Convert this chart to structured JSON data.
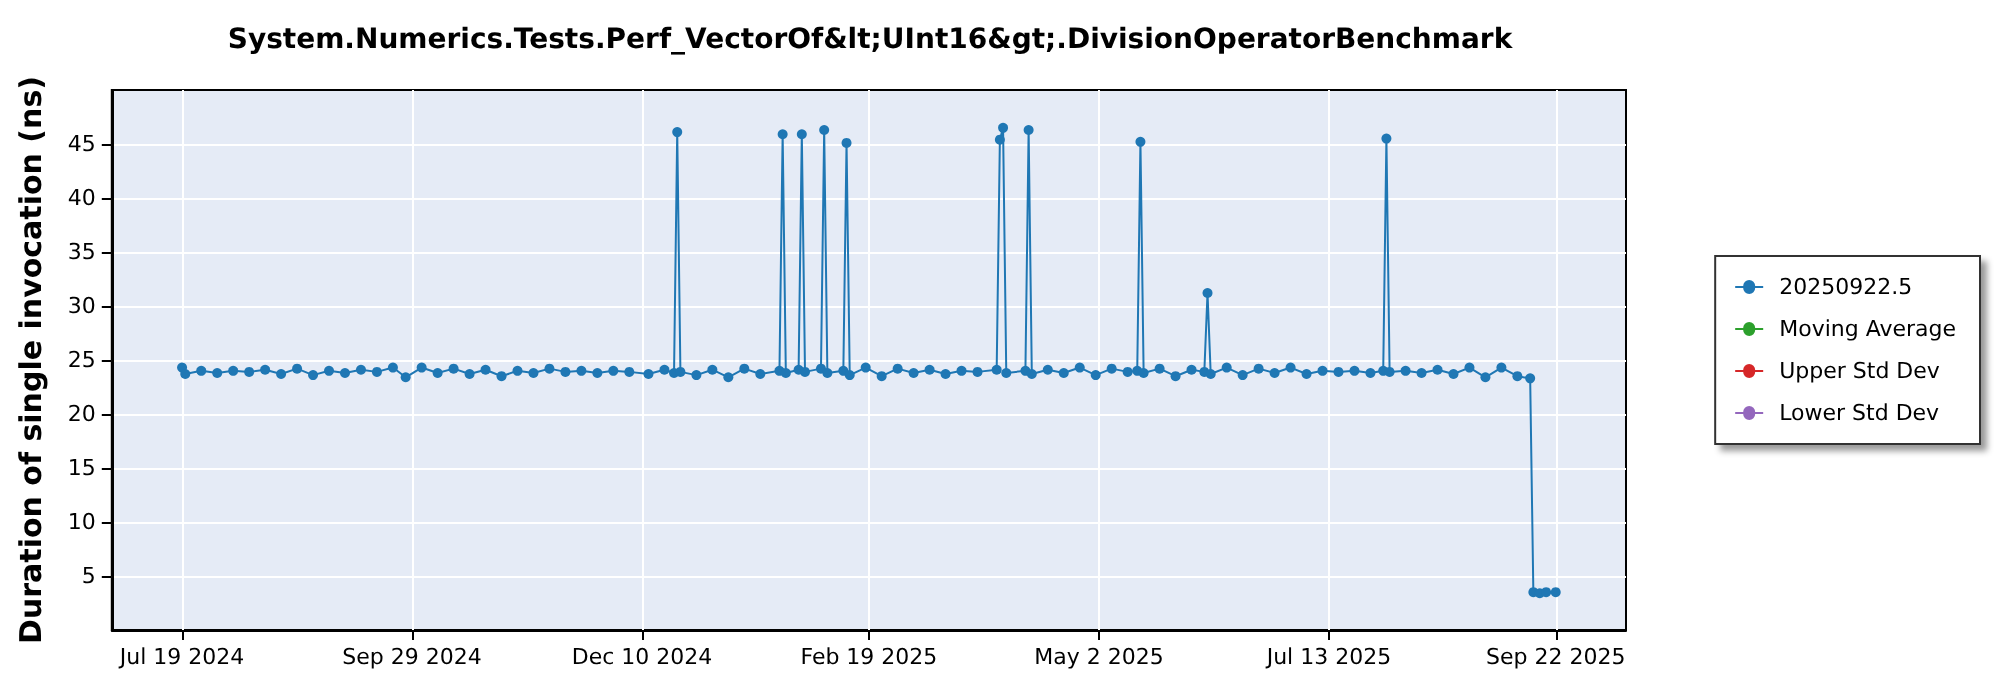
{
  "chart_data": {
    "type": "line",
    "title": "System.Numerics.Tests.Perf_VectorOf&lt;UInt16&gt;.DivisionOperatorBenchmark",
    "ylabel": "Duration of single invocation (ns)",
    "series": [
      {
        "name": "20250922.5",
        "color": "#1f77b4",
        "x": [
          "2024-07-19",
          "2024-07-20",
          "2024-07-25",
          "2024-07-30",
          "2024-08-04",
          "2024-08-09",
          "2024-08-14",
          "2024-08-19",
          "2024-08-24",
          "2024-08-29",
          "2024-09-03",
          "2024-09-08",
          "2024-09-13",
          "2024-09-18",
          "2024-09-23",
          "2024-09-27",
          "2024-10-02",
          "2024-10-07",
          "2024-10-12",
          "2024-10-17",
          "2024-10-22",
          "2024-10-27",
          "2024-11-01",
          "2024-11-06",
          "2024-11-11",
          "2024-11-16",
          "2024-11-21",
          "2024-11-26",
          "2024-12-01",
          "2024-12-06",
          "2024-12-12",
          "2024-12-17",
          "2024-12-20",
          "2024-12-21",
          "2024-12-22",
          "2024-12-27",
          "2025-01-01",
          "2025-01-06",
          "2025-01-11",
          "2025-01-16",
          "2025-01-22",
          "2025-01-23",
          "2025-01-24",
          "2025-01-28",
          "2025-01-29",
          "2025-01-30",
          "2025-02-04",
          "2025-02-05",
          "2025-02-06",
          "2025-02-11",
          "2025-02-12",
          "2025-02-13",
          "2025-02-18",
          "2025-02-23",
          "2025-02-28",
          "2025-03-05",
          "2025-03-10",
          "2025-03-15",
          "2025-03-20",
          "2025-03-25",
          "2025-03-31",
          "2025-04-01",
          "2025-04-02",
          "2025-04-03",
          "2025-04-09",
          "2025-04-10",
          "2025-04-11",
          "2025-04-16",
          "2025-04-21",
          "2025-04-26",
          "2025-05-01",
          "2025-05-06",
          "2025-05-11",
          "2025-05-14",
          "2025-05-15",
          "2025-05-16",
          "2025-05-21",
          "2025-05-26",
          "2025-05-31",
          "2025-06-04",
          "2025-06-05",
          "2025-06-06",
          "2025-06-11",
          "2025-06-16",
          "2025-06-21",
          "2025-06-26",
          "2025-07-01",
          "2025-07-06",
          "2025-07-11",
          "2025-07-16",
          "2025-07-21",
          "2025-07-26",
          "2025-07-30",
          "2025-07-31",
          "2025-08-01",
          "2025-08-06",
          "2025-08-11",
          "2025-08-16",
          "2025-08-21",
          "2025-08-26",
          "2025-08-31",
          "2025-09-05",
          "2025-09-10",
          "2025-09-14",
          "2025-09-15",
          "2025-09-17",
          "2025-09-19",
          "2025-09-22"
        ],
        "values": [
          24.3,
          23.7,
          24.0,
          23.8,
          24.0,
          23.9,
          24.1,
          23.7,
          24.2,
          23.6,
          24.0,
          23.8,
          24.1,
          23.9,
          24.3,
          23.4,
          24.3,
          23.8,
          24.2,
          23.7,
          24.1,
          23.5,
          24.0,
          23.8,
          24.2,
          23.9,
          24.0,
          23.8,
          24.0,
          23.9,
          23.7,
          24.1,
          23.8,
          46.1,
          23.9,
          23.6,
          24.1,
          23.4,
          24.2,
          23.7,
          24.0,
          45.9,
          23.8,
          24.1,
          45.9,
          23.9,
          24.2,
          46.3,
          23.8,
          24.0,
          45.1,
          23.6,
          24.3,
          23.5,
          24.2,
          23.8,
          24.1,
          23.7,
          24.0,
          23.9,
          24.1,
          45.4,
          46.5,
          23.8,
          24.0,
          46.3,
          23.7,
          24.1,
          23.8,
          24.3,
          23.6,
          24.2,
          23.9,
          24.0,
          45.2,
          23.8,
          24.2,
          23.5,
          24.1,
          23.9,
          31.2,
          23.7,
          24.3,
          23.6,
          24.2,
          23.8,
          24.3,
          23.7,
          24.0,
          23.9,
          24.0,
          23.8,
          24.0,
          45.5,
          23.9,
          24.0,
          23.8,
          24.1,
          23.7,
          24.3,
          23.4,
          24.3,
          23.5,
          23.3,
          3.5,
          3.4,
          3.5,
          3.5
        ]
      },
      {
        "name": "Moving Average",
        "color": "#2ca02c"
      },
      {
        "name": "Upper Std Dev",
        "color": "#d62728"
      },
      {
        "name": "Lower Std Dev",
        "color": "#9467bd"
      }
    ],
    "xlim": [
      "2024-06-27",
      "2025-10-14"
    ],
    "xticks": [
      {
        "value": "2024-07-19",
        "label": "Jul 19 2024"
      },
      {
        "value": "2024-09-29",
        "label": "Sep 29 2024"
      },
      {
        "value": "2024-12-10",
        "label": "Dec 10 2024"
      },
      {
        "value": "2025-02-19",
        "label": "Feb 19 2025"
      },
      {
        "value": "2025-05-02",
        "label": "May 2 2025"
      },
      {
        "value": "2025-07-13",
        "label": "Jul 13 2025"
      },
      {
        "value": "2025-09-22",
        "label": "Sep 22 2025"
      }
    ],
    "ylim": [
      0,
      50
    ],
    "yticks": [
      5,
      10,
      15,
      20,
      25,
      30,
      35,
      40,
      45
    ],
    "grid": true,
    "legend": "right",
    "marker": "circle",
    "line_style": "solid"
  }
}
